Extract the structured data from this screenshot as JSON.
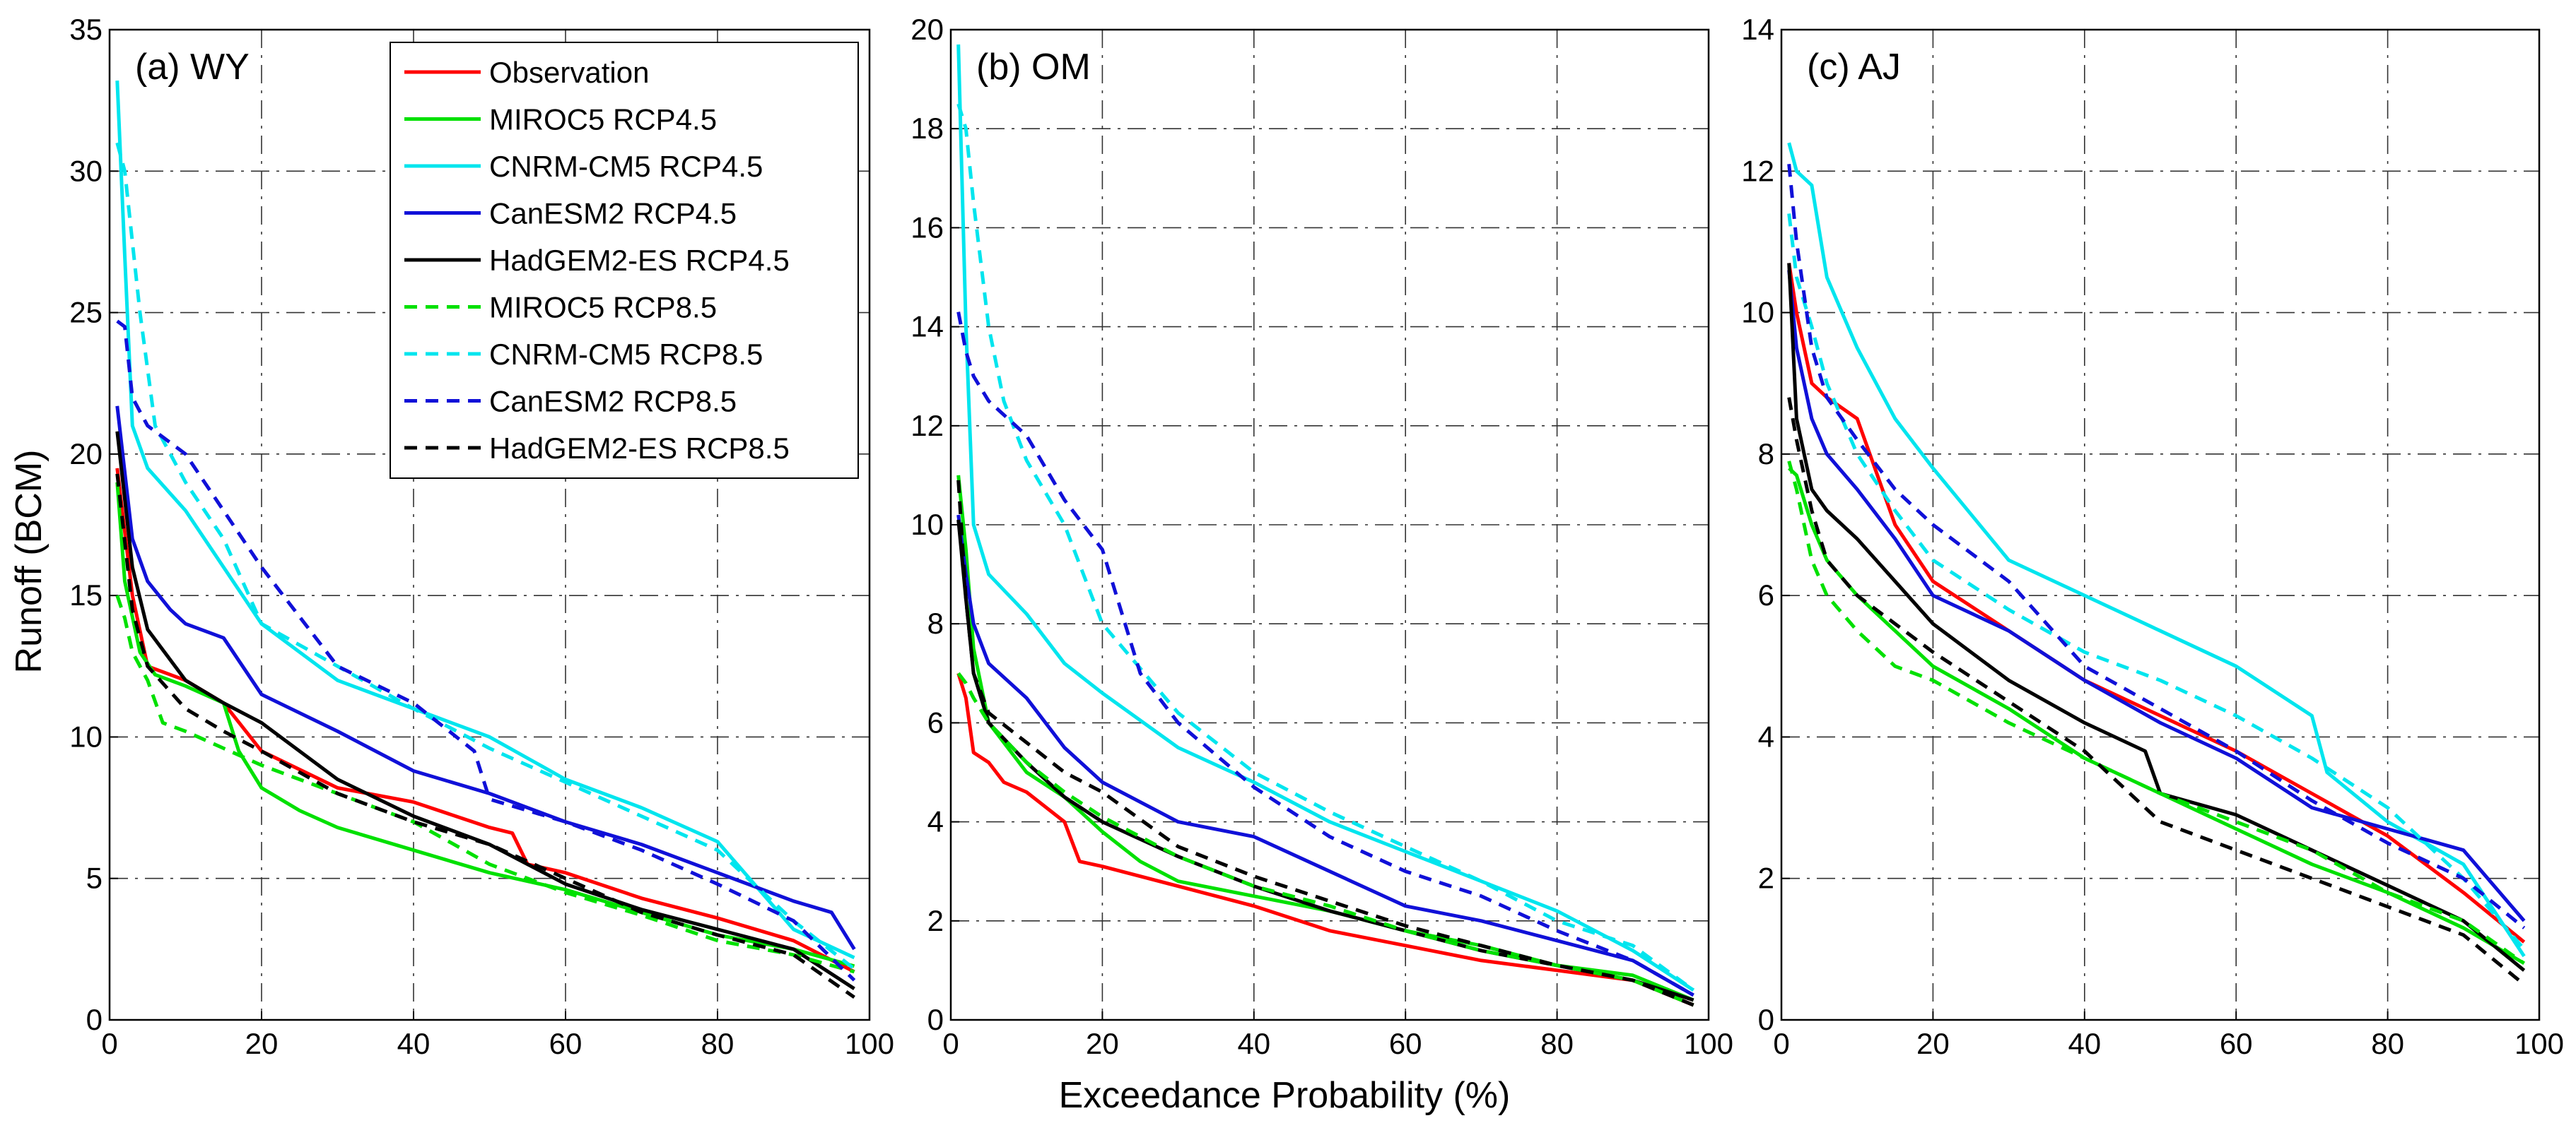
{
  "figure": {
    "ylabel": "Runoff (BCM)",
    "xlabel": "Exceedance Probability (%)"
  },
  "legend": [
    {
      "name": "Observation",
      "color": "#ff0000",
      "dash": "solid"
    },
    {
      "name": "MIROC5 RCP4.5",
      "color": "#00e000",
      "dash": "solid"
    },
    {
      "name": "CNRM-CM5 RCP4.5",
      "color": "#00e5ee",
      "dash": "solid"
    },
    {
      "name": "CanESM2 RCP4.5",
      "color": "#1010d8",
      "dash": "solid"
    },
    {
      "name": "HadGEM2-ES RCP4.5",
      "color": "#000000",
      "dash": "solid"
    },
    {
      "name": "MIROC5 RCP8.5",
      "color": "#00e000",
      "dash": "dashed"
    },
    {
      "name": "CNRM-CM5 RCP8.5",
      "color": "#00e5ee",
      "dash": "dashed"
    },
    {
      "name": "CanESM2 RCP8.5",
      "color": "#1010d8",
      "dash": "dashed"
    },
    {
      "name": "HadGEM2-ES RCP8.5",
      "color": "#000000",
      "dash": "dashed"
    }
  ],
  "chart_data": [
    {
      "type": "line",
      "title": "(a) WY",
      "xlabel": "Exceedance Probability (%)",
      "ylabel": "Runoff (BCM)",
      "xlim": [
        0,
        100
      ],
      "ylim": [
        0,
        35
      ],
      "xticks": [
        0,
        20,
        40,
        60,
        80,
        100
      ],
      "yticks": [
        0,
        5,
        10,
        15,
        20,
        25,
        30,
        35
      ],
      "grid": true,
      "legend_position": "top-right",
      "series": [
        {
          "name": "Observation",
          "x": [
            1,
            3,
            5,
            10,
            15,
            20,
            30,
            40,
            50,
            53,
            55,
            60,
            70,
            80,
            90,
            98
          ],
          "y": [
            19.5,
            15,
            12.5,
            12,
            11.2,
            9.5,
            8.2,
            7.7,
            6.8,
            6.6,
            5.5,
            5.2,
            4.3,
            3.6,
            2.8,
            1.7
          ]
        },
        {
          "name": "MIROC5 RCP4.5",
          "x": [
            1,
            2,
            4,
            6,
            10,
            15,
            17,
            20,
            25,
            30,
            40,
            50,
            60,
            70,
            80,
            90,
            98
          ],
          "y": [
            19,
            15.5,
            13,
            12.2,
            11.8,
            11.2,
            9.5,
            8.2,
            7.4,
            6.8,
            6.0,
            5.2,
            4.6,
            3.8,
            3.0,
            2.5,
            1.9
          ]
        },
        {
          "name": "CNRM-CM5 RCP4.5",
          "x": [
            1,
            2,
            3,
            5,
            10,
            15,
            20,
            30,
            40,
            50,
            60,
            70,
            80,
            90,
            98
          ],
          "y": [
            33.2,
            27,
            21,
            19.5,
            18,
            16,
            14,
            12,
            11,
            10,
            8.5,
            7.5,
            6.3,
            3.2,
            2.2
          ]
        },
        {
          "name": "CanESM2 RCP4.5",
          "x": [
            1,
            3,
            5,
            8,
            10,
            15,
            20,
            30,
            40,
            50,
            60,
            70,
            80,
            90,
            95,
            98
          ],
          "y": [
            21.7,
            17,
            15.5,
            14.5,
            14,
            13.5,
            11.5,
            10.2,
            8.8,
            8.0,
            7.0,
            6.2,
            5.2,
            4.2,
            3.8,
            2.5
          ]
        },
        {
          "name": "HadGEM2-ES RCP4.5",
          "x": [
            1,
            3,
            5,
            10,
            15,
            20,
            30,
            40,
            50,
            60,
            70,
            80,
            90,
            98
          ],
          "y": [
            20.8,
            16,
            13.8,
            12,
            11.2,
            10.5,
            8.5,
            7.2,
            6.2,
            4.8,
            3.9,
            3.2,
            2.5,
            1.1
          ]
        },
        {
          "name": "MIROC5 RCP8.5",
          "x": [
            1,
            2,
            3,
            5,
            7,
            10,
            15,
            20,
            30,
            40,
            50,
            60,
            70,
            80,
            90,
            98
          ],
          "y": [
            15,
            14.2,
            13,
            12,
            10.5,
            10.2,
            9.6,
            9.0,
            8.0,
            7.0,
            5.5,
            4.5,
            3.7,
            2.8,
            2.3,
            1.7
          ]
        },
        {
          "name": "CNRM-CM5 RCP8.5",
          "x": [
            1,
            2,
            4,
            6,
            10,
            15,
            20,
            30,
            40,
            50,
            60,
            70,
            80,
            90,
            98
          ],
          "y": [
            31,
            30,
            25,
            21,
            19,
            17,
            14,
            12.5,
            11,
            9.6,
            8.4,
            7.2,
            6.0,
            3.5,
            1.8
          ]
        },
        {
          "name": "CanESM2 RCP8.5",
          "x": [
            1,
            2,
            3,
            4,
            5,
            10,
            15,
            20,
            30,
            40,
            48,
            50,
            60,
            70,
            80,
            90,
            98
          ],
          "y": [
            24.7,
            24.5,
            22,
            21.5,
            21,
            20,
            18,
            16,
            12.5,
            11.2,
            9.5,
            7.8,
            7.0,
            6.0,
            4.8,
            3.5,
            1.4
          ]
        },
        {
          "name": "HadGEM2-ES RCP8.5",
          "x": [
            1,
            3,
            5,
            10,
            15,
            20,
            30,
            40,
            50,
            60,
            70,
            80,
            90,
            98
          ],
          "y": [
            19.3,
            14.5,
            12.5,
            11,
            10.2,
            9.5,
            8.0,
            7.0,
            6.2,
            5.0,
            3.8,
            3.0,
            2.3,
            0.8
          ]
        }
      ]
    },
    {
      "type": "line",
      "title": "(b) OM",
      "xlabel": "Exceedance Probability (%)",
      "ylabel": "",
      "xlim": [
        0,
        100
      ],
      "ylim": [
        0,
        20
      ],
      "xticks": [
        0,
        20,
        40,
        60,
        80,
        100
      ],
      "yticks": [
        0,
        2,
        4,
        6,
        8,
        10,
        12,
        14,
        16,
        18,
        20
      ],
      "grid": true,
      "series": [
        {
          "name": "Observation",
          "x": [
            1,
            2,
            3,
            5,
            7,
            10,
            15,
            17,
            20,
            25,
            30,
            40,
            50,
            60,
            70,
            80,
            90,
            98
          ],
          "y": [
            7.0,
            6.5,
            5.4,
            5.2,
            4.8,
            4.6,
            4.0,
            3.2,
            3.1,
            2.9,
            2.7,
            2.3,
            1.8,
            1.5,
            1.2,
            1.0,
            0.8,
            0.3
          ]
        },
        {
          "name": "MIROC5 RCP4.5",
          "x": [
            1,
            2,
            3,
            5,
            10,
            15,
            20,
            25,
            30,
            40,
            50,
            60,
            70,
            80,
            90,
            98
          ],
          "y": [
            11.0,
            9.5,
            7.5,
            6.0,
            5.0,
            4.5,
            3.8,
            3.2,
            2.8,
            2.5,
            2.2,
            1.8,
            1.5,
            1.1,
            0.9,
            0.4
          ]
        },
        {
          "name": "CNRM-CM5 RCP4.5",
          "x": [
            1,
            2,
            3,
            5,
            10,
            15,
            20,
            30,
            40,
            50,
            60,
            70,
            80,
            90,
            98
          ],
          "y": [
            19.7,
            14,
            10,
            9.0,
            8.2,
            7.2,
            6.6,
            5.5,
            4.8,
            4.0,
            3.4,
            2.8,
            2.2,
            1.4,
            0.6
          ]
        },
        {
          "name": "CanESM2 RCP4.5",
          "x": [
            1,
            2,
            3,
            5,
            10,
            15,
            20,
            30,
            40,
            50,
            60,
            70,
            80,
            90,
            98
          ],
          "y": [
            10.2,
            9.0,
            8.0,
            7.2,
            6.5,
            5.5,
            4.8,
            4.0,
            3.7,
            3.0,
            2.3,
            2.0,
            1.6,
            1.2,
            0.5
          ]
        },
        {
          "name": "HadGEM2-ES RCP4.5",
          "x": [
            1,
            2,
            3,
            5,
            10,
            15,
            20,
            30,
            40,
            50,
            60,
            70,
            80,
            90,
            98
          ],
          "y": [
            10.1,
            8.5,
            7.0,
            6.0,
            5.2,
            4.5,
            4.0,
            3.3,
            2.7,
            2.2,
            1.8,
            1.4,
            1.1,
            0.8,
            0.4
          ]
        },
        {
          "name": "MIROC5 RCP8.5",
          "x": [
            1,
            2,
            3,
            5,
            10,
            15,
            20,
            30,
            40,
            50,
            60,
            70,
            80,
            90,
            98
          ],
          "y": [
            7.0,
            6.8,
            6.5,
            6.0,
            5.2,
            4.6,
            4.1,
            3.3,
            2.7,
            2.3,
            1.8,
            1.4,
            1.1,
            0.8,
            0.3
          ]
        },
        {
          "name": "CNRM-CM5 RCP8.5",
          "x": [
            1,
            2,
            3,
            5,
            7,
            10,
            15,
            20,
            30,
            40,
            50,
            60,
            70,
            80,
            90,
            98
          ],
          "y": [
            18.5,
            18,
            16.5,
            14,
            12.5,
            11.3,
            10.0,
            8.0,
            6.2,
            5.0,
            4.2,
            3.5,
            2.8,
            2.0,
            1.5,
            0.6
          ]
        },
        {
          "name": "CanESM2 RCP8.5",
          "x": [
            1,
            2,
            3,
            5,
            10,
            15,
            20,
            25,
            30,
            40,
            50,
            60,
            70,
            80,
            90,
            98
          ],
          "y": [
            14.3,
            13.5,
            13.0,
            12.5,
            11.8,
            10.5,
            9.5,
            7.0,
            6.0,
            4.7,
            3.7,
            3.0,
            2.5,
            1.8,
            1.2,
            0.5
          ]
        },
        {
          "name": "HadGEM2-ES RCP8.5",
          "x": [
            1,
            2,
            3,
            5,
            10,
            15,
            20,
            30,
            40,
            50,
            60,
            70,
            80,
            90,
            98
          ],
          "y": [
            10.9,
            8.5,
            7.0,
            6.2,
            5.6,
            5.0,
            4.6,
            3.5,
            2.9,
            2.4,
            1.9,
            1.5,
            1.1,
            0.8,
            0.3
          ]
        }
      ]
    },
    {
      "type": "line",
      "title": "(c) AJ",
      "xlabel": "Exceedance Probability (%)",
      "ylabel": "",
      "xlim": [
        0,
        100
      ],
      "ylim": [
        0,
        14
      ],
      "xticks": [
        0,
        20,
        40,
        60,
        80,
        100
      ],
      "yticks": [
        0,
        2,
        4,
        6,
        8,
        10,
        12,
        14
      ],
      "grid": true,
      "series": [
        {
          "name": "Observation",
          "x": [
            1,
            2,
            4,
            6,
            10,
            15,
            20,
            30,
            40,
            50,
            60,
            70,
            80,
            90,
            98
          ],
          "y": [
            10.7,
            10.0,
            9.0,
            8.8,
            8.5,
            7.0,
            6.2,
            5.5,
            4.8,
            4.3,
            3.8,
            3.2,
            2.6,
            1.8,
            1.1
          ]
        },
        {
          "name": "MIROC5 RCP4.5",
          "x": [
            1,
            2,
            4,
            6,
            10,
            15,
            20,
            30,
            40,
            50,
            60,
            70,
            80,
            90,
            98
          ],
          "y": [
            7.8,
            7.7,
            7.0,
            6.5,
            6.0,
            5.5,
            5.0,
            4.4,
            3.7,
            3.2,
            2.7,
            2.2,
            1.8,
            1.3,
            0.8
          ]
        },
        {
          "name": "CNRM-CM5 RCP4.5",
          "x": [
            1,
            2,
            4,
            6,
            10,
            15,
            20,
            30,
            40,
            50,
            60,
            70,
            72,
            80,
            90,
            98
          ],
          "y": [
            12.4,
            12.0,
            11.8,
            10.5,
            9.5,
            8.5,
            7.8,
            6.5,
            6.0,
            5.5,
            5.0,
            4.3,
            3.5,
            2.8,
            2.2,
            0.9
          ]
        },
        {
          "name": "CanESM2 RCP4.5",
          "x": [
            1,
            2,
            4,
            6,
            10,
            15,
            20,
            30,
            40,
            50,
            60,
            70,
            80,
            90,
            98
          ],
          "y": [
            10.6,
            9.5,
            8.5,
            8.0,
            7.5,
            6.8,
            6.0,
            5.5,
            4.8,
            4.2,
            3.7,
            3.0,
            2.7,
            2.4,
            1.4
          ]
        },
        {
          "name": "HadGEM2-ES RCP4.5",
          "x": [
            1,
            2,
            4,
            6,
            10,
            15,
            20,
            30,
            40,
            48,
            50,
            60,
            70,
            80,
            90,
            98
          ],
          "y": [
            10.7,
            8.5,
            7.5,
            7.2,
            6.8,
            6.2,
            5.6,
            4.8,
            4.2,
            3.8,
            3.2,
            2.9,
            2.4,
            1.9,
            1.4,
            0.7
          ]
        },
        {
          "name": "MIROC5 RCP8.5",
          "x": [
            1,
            2,
            4,
            6,
            10,
            15,
            20,
            30,
            40,
            50,
            60,
            70,
            80,
            90,
            98
          ],
          "y": [
            7.9,
            7.5,
            6.5,
            6.0,
            5.5,
            5.0,
            4.8,
            4.2,
            3.7,
            3.2,
            2.8,
            2.4,
            1.8,
            1.4,
            0.8
          ]
        },
        {
          "name": "CNRM-CM5 RCP8.5",
          "x": [
            1,
            2,
            4,
            6,
            10,
            15,
            20,
            30,
            40,
            50,
            60,
            70,
            80,
            90,
            98
          ],
          "y": [
            11.4,
            10.5,
            9.8,
            9.0,
            8.0,
            7.2,
            6.5,
            5.8,
            5.2,
            4.8,
            4.3,
            3.7,
            3.0,
            2.0,
            1.0
          ]
        },
        {
          "name": "CanESM2 RCP8.5",
          "x": [
            1,
            2,
            4,
            6,
            10,
            15,
            20,
            30,
            40,
            50,
            60,
            70,
            80,
            90,
            98
          ],
          "y": [
            12.1,
            11.0,
            9.5,
            8.8,
            8.2,
            7.5,
            7.0,
            6.2,
            5.0,
            4.4,
            3.8,
            3.1,
            2.5,
            2.0,
            1.3
          ]
        },
        {
          "name": "HadGEM2-ES RCP8.5",
          "x": [
            1,
            2,
            4,
            6,
            10,
            15,
            20,
            30,
            40,
            50,
            60,
            70,
            80,
            90,
            98
          ],
          "y": [
            8.8,
            8.2,
            7.2,
            6.5,
            6.0,
            5.6,
            5.2,
            4.5,
            3.8,
            2.8,
            2.4,
            2.0,
            1.6,
            1.2,
            0.5
          ]
        }
      ]
    }
  ]
}
